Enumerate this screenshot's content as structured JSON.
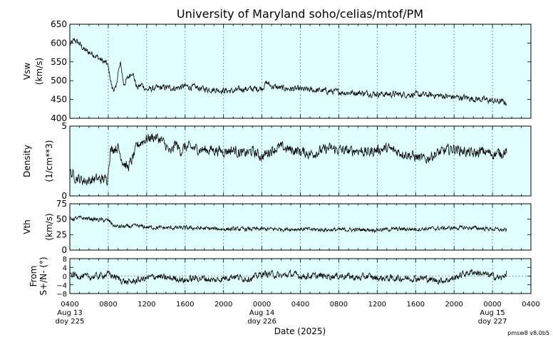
{
  "chart_data": {
    "type": "line",
    "title": "University of Maryland  soho/celias/mtof/PM",
    "xlabel": "Date (2025)",
    "footnote": "pmsw8 v8.0b5",
    "x_range_hours": [
      4,
      52
    ],
    "x_ticks": [
      {
        "label": "0400",
        "day": "Aug 13",
        "doy": "doy 225"
      },
      {
        "label": "0800"
      },
      {
        "label": "1200"
      },
      {
        "label": "1600"
      },
      {
        "label": "2000"
      },
      {
        "label": "0000",
        "day": "Aug 14",
        "doy": "doy 226"
      },
      {
        "label": "0400"
      },
      {
        "label": "0800"
      },
      {
        "label": "1200"
      },
      {
        "label": "1600"
      },
      {
        "label": "2000"
      },
      {
        "label": "0000",
        "day": "Aug 15",
        "doy": "doy 227"
      },
      {
        "label": "0400"
      },
      {
        "label": "0800"
      }
    ],
    "grid": true,
    "background_color": "#e0ffff",
    "line_color": "#000000",
    "panels": [
      {
        "id": "vsw",
        "ylabel": "Vsw",
        "yunit": "(km/s)",
        "ylim": [
          400,
          650
        ],
        "yticks": [
          400,
          450,
          500,
          550,
          600,
          650
        ],
        "noise": 7,
        "x": [
          4,
          4.5,
          5,
          5.5,
          6,
          6.5,
          7,
          7.5,
          7.9,
          8.1,
          8.4,
          8.8,
          9,
          9.3,
          9.6,
          10,
          10.5,
          11,
          11.5,
          12,
          12.5,
          13,
          14,
          15,
          16,
          17,
          18,
          19,
          20,
          21,
          22,
          23,
          24,
          24.5,
          25,
          26,
          27,
          28,
          29,
          30,
          31,
          32,
          33,
          34,
          35,
          36,
          37,
          38,
          39,
          40,
          41,
          42,
          43,
          44,
          45,
          46,
          47,
          48,
          49,
          49.5
        ],
        "y": [
          595,
          608,
          598,
          582,
          575,
          570,
          560,
          550,
          545,
          522,
          480,
          476,
          520,
          545,
          490,
          505,
          525,
          480,
          490,
          475,
          478,
          480,
          482,
          480,
          485,
          482,
          478,
          476,
          474,
          472,
          478,
          478,
          480,
          495,
          485,
          480,
          478,
          477,
          475,
          474,
          472,
          470,
          468,
          468,
          466,
          465,
          464,
          464,
          463,
          463,
          462,
          461,
          459,
          456,
          455,
          452,
          450,
          446,
          444,
          441
        ]
      },
      {
        "id": "density",
        "ylabel": "Density",
        "yunit": "(1/cm**3)",
        "ylim": [
          0,
          5
        ],
        "yticks": [
          0,
          5
        ],
        "noise": 0.32,
        "x": [
          4,
          4.5,
          5,
          5.5,
          6,
          6.5,
          7,
          7.5,
          7.9,
          8.2,
          8.5,
          9,
          9.5,
          10,
          10.5,
          11,
          11.5,
          12,
          12.5,
          13,
          13.5,
          14,
          14.5,
          15,
          15.5,
          16,
          17,
          18,
          19,
          20,
          21,
          22,
          23,
          24,
          25,
          26,
          27,
          28,
          29,
          30,
          31,
          32,
          33,
          34,
          35,
          36,
          37,
          38,
          39,
          40,
          41,
          42,
          43,
          44,
          45,
          46,
          47,
          48,
          49,
          49.5
        ],
        "y": [
          1.7,
          1.4,
          1.2,
          1.1,
          1.1,
          1.2,
          1.2,
          1.2,
          1.2,
          3.2,
          3.4,
          3.5,
          2.5,
          2.0,
          2.6,
          3.6,
          3.9,
          4.1,
          4.2,
          4.2,
          4.0,
          3.6,
          3.0,
          3.8,
          3.2,
          3.5,
          3.4,
          3.3,
          3.3,
          3.2,
          3.3,
          3.0,
          3.2,
          2.8,
          3.3,
          3.5,
          3.3,
          3.2,
          3.0,
          3.2,
          3.4,
          3.3,
          3.2,
          3.3,
          3.1,
          3.3,
          3.4,
          3.2,
          3.0,
          2.8,
          2.6,
          3.0,
          3.2,
          3.4,
          3.2,
          3.0,
          3.2,
          3.0,
          3.1,
          3.2
        ]
      },
      {
        "id": "vth",
        "ylabel": "Vth",
        "yunit": "(km/s)",
        "ylim": [
          0,
          75
        ],
        "yticks": [
          0,
          25,
          50,
          75
        ],
        "noise": 2.8,
        "x": [
          4,
          5,
          6,
          7,
          8,
          8.3,
          8.6,
          9,
          10,
          11,
          12,
          14,
          16,
          18,
          20,
          22,
          24,
          26,
          28,
          30,
          32,
          34,
          36,
          38,
          40,
          42,
          44,
          46,
          48,
          49.5
        ],
        "y": [
          50,
          52,
          51,
          49,
          48,
          44,
          39,
          38,
          38,
          39,
          37,
          36,
          36,
          35,
          34,
          34,
          34,
          34,
          34,
          33,
          33,
          33,
          33,
          34,
          34,
          35,
          36,
          36,
          34,
          32
        ]
      },
      {
        "id": "from",
        "ylabel": "From",
        "yunit": "S+/N- (°)",
        "ylim": [
          -8,
          8
        ],
        "yticks": [
          -8,
          -4,
          0,
          4,
          8
        ],
        "tick_labels": [
          "−8",
          "−4",
          "0",
          "4",
          "8"
        ],
        "noise": 1.3,
        "zero_line": true,
        "x": [
          4,
          5,
          6,
          7,
          8,
          9,
          10,
          11,
          12,
          13,
          14,
          15,
          16,
          17,
          18,
          19,
          20,
          21,
          22,
          23,
          24,
          25,
          26,
          27,
          28,
          29,
          30,
          31,
          32,
          33,
          34,
          35,
          36,
          37,
          38,
          39,
          40,
          41,
          42,
          43,
          44,
          45,
          46,
          47,
          48,
          49,
          49.5
        ],
        "y": [
          1,
          0,
          -0.5,
          0,
          1,
          -1,
          -3,
          -2,
          -1,
          0,
          -1,
          -1,
          -2,
          -1,
          -1,
          -2,
          -1,
          0,
          -1,
          -1,
          1,
          1,
          0,
          1,
          0,
          0,
          0,
          0,
          0,
          0,
          -1,
          0,
          -1,
          -1,
          -1,
          -1,
          -1,
          -1,
          -2,
          -2,
          -1,
          1,
          2,
          1,
          0,
          -1,
          2
        ]
      }
    ]
  }
}
